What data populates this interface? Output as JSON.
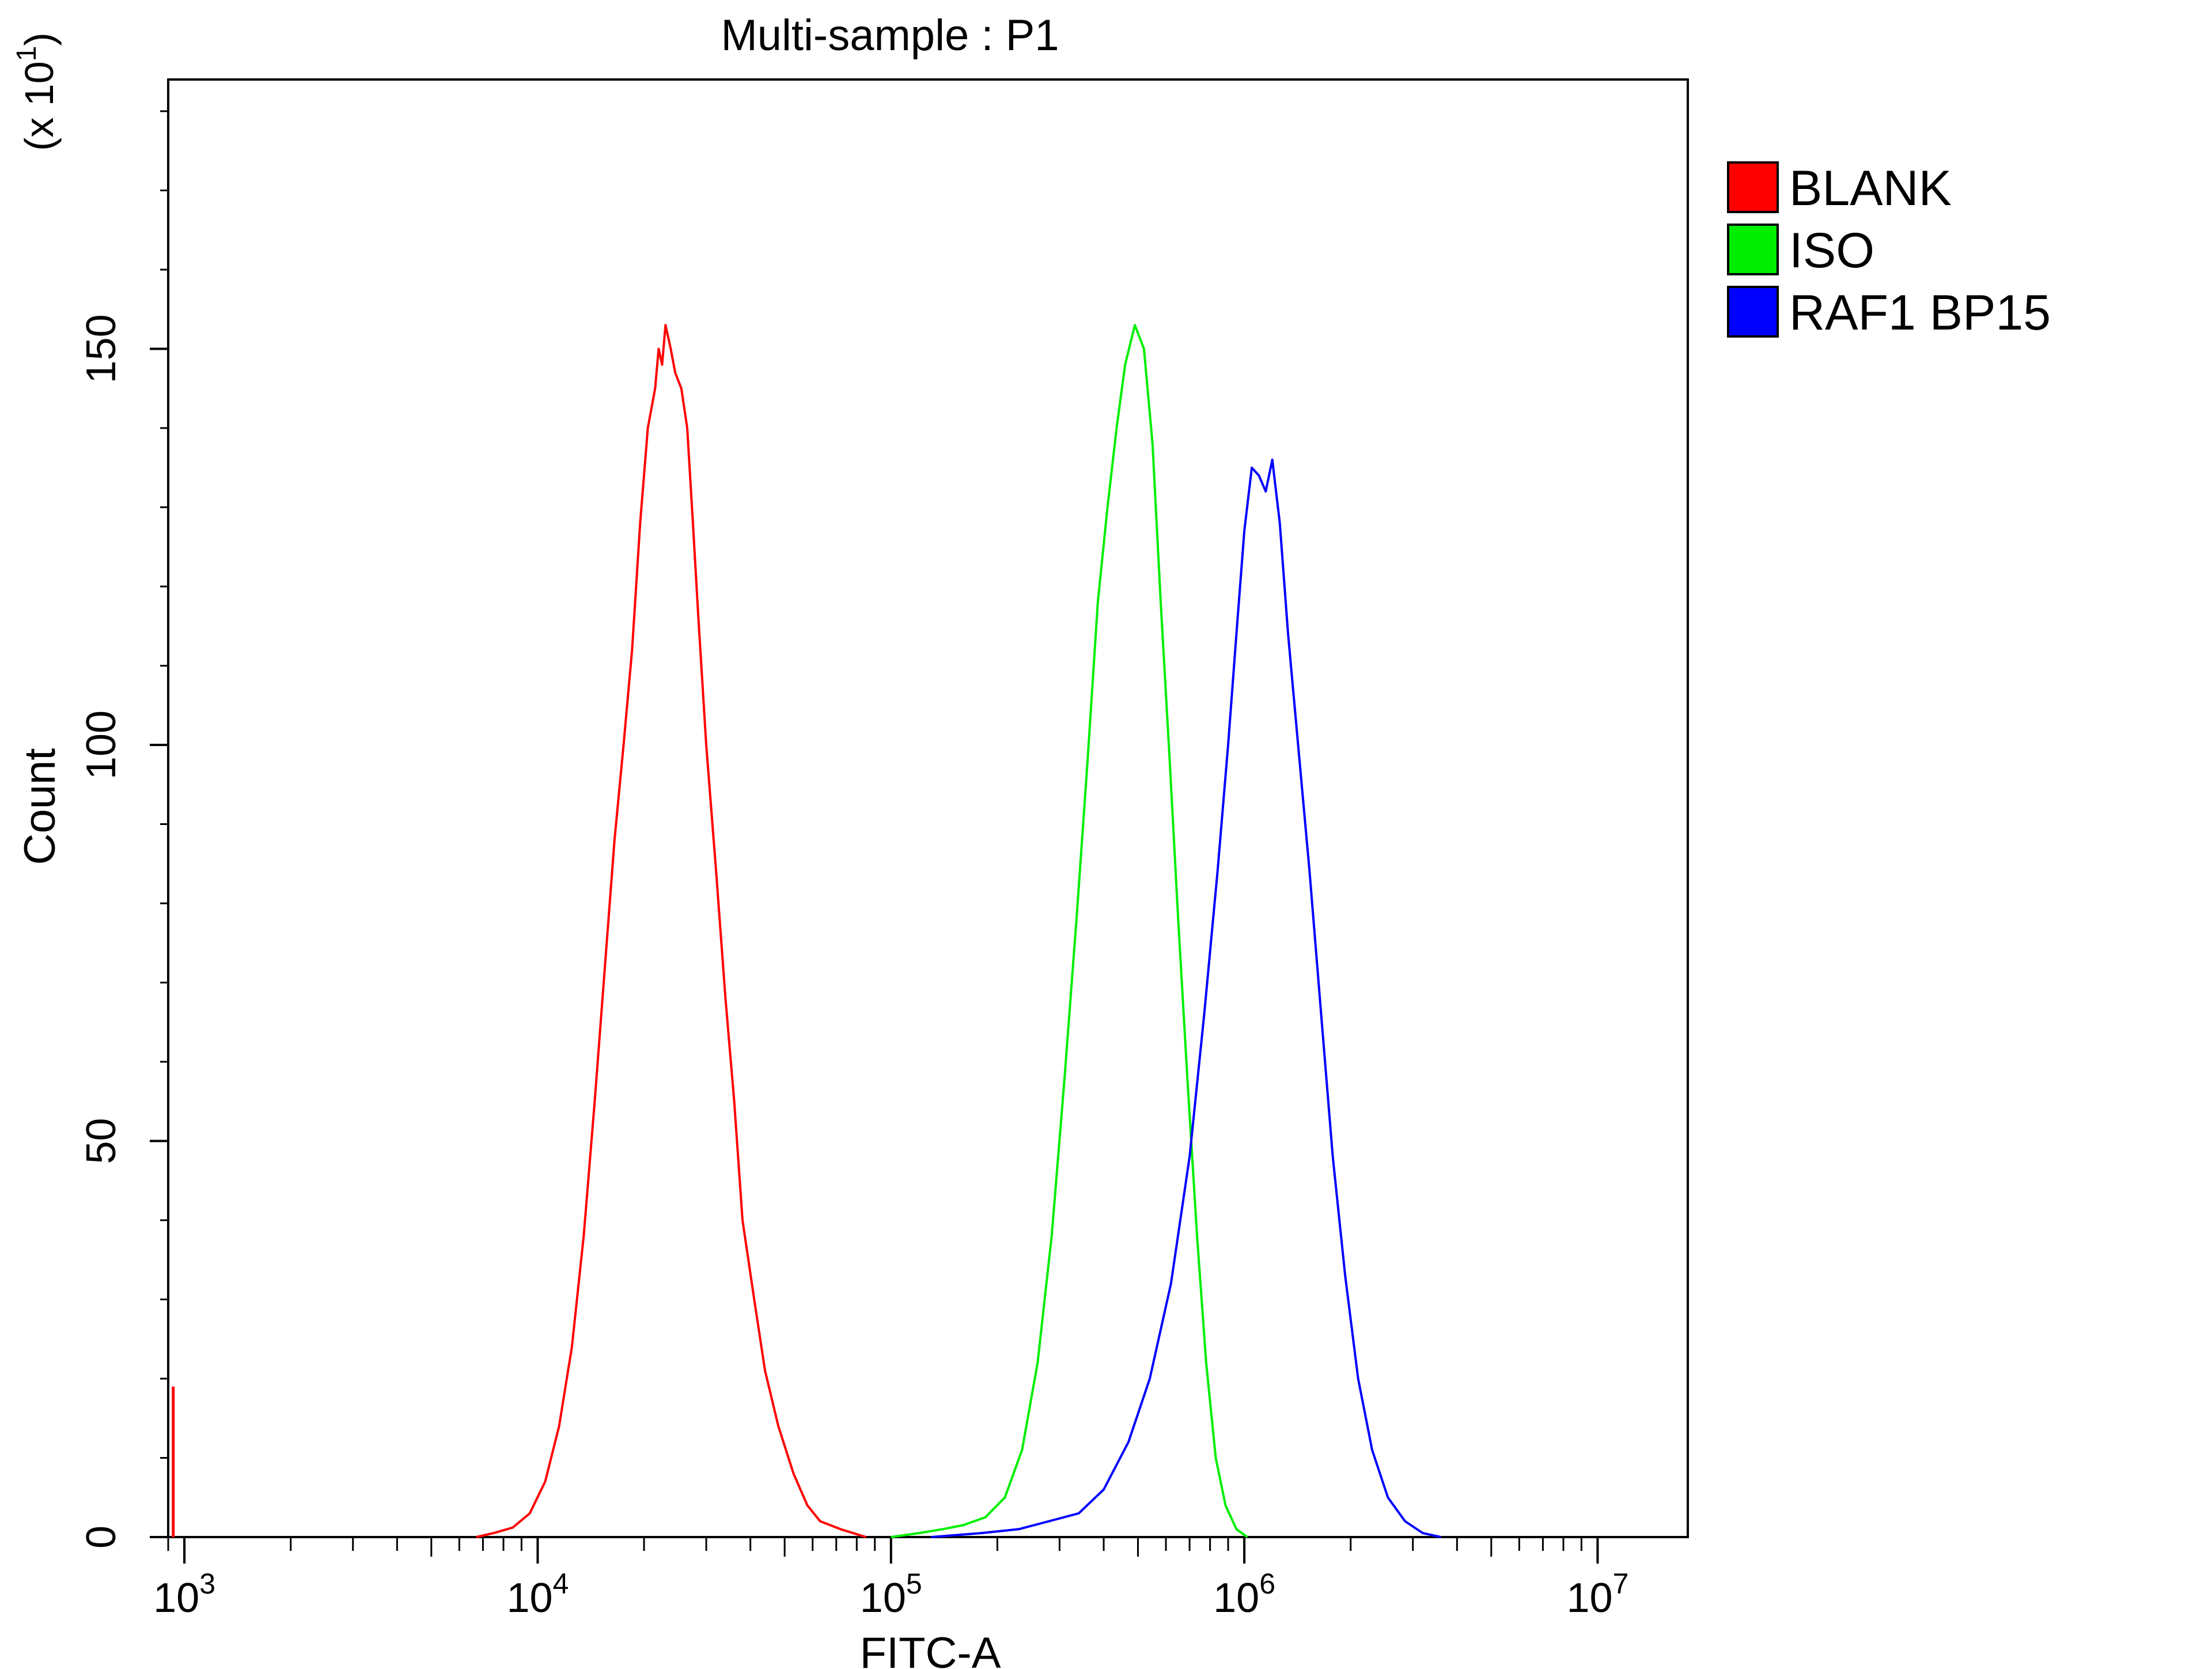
{
  "chart_data": {
    "type": "line",
    "title": "Multi-sample : P1",
    "xlabel": "FITC-A",
    "ylabel": "Count",
    "y_multiplier": "(x 10",
    "y_multiplier_exp": "1",
    "y_multiplier_close": ")",
    "x_scale": "log",
    "xlim": [
      900,
      18000000
    ],
    "ylim": [
      0,
      184
    ],
    "x_ticks": [
      {
        "value": 1000,
        "base": "10",
        "exp": "3"
      },
      {
        "value": 10000,
        "base": "10",
        "exp": "4"
      },
      {
        "value": 100000,
        "base": "10",
        "exp": "5"
      },
      {
        "value": 1000000,
        "base": "10",
        "exp": "6"
      },
      {
        "value": 10000000,
        "base": "10",
        "exp": "7"
      }
    ],
    "y_ticks": [
      {
        "value": 0,
        "label": "0"
      },
      {
        "value": 50,
        "label": "50"
      },
      {
        "value": 100,
        "label": "100"
      },
      {
        "value": 150,
        "label": "150"
      }
    ],
    "grid": false,
    "legend_position": "right",
    "series": [
      {
        "name": "BLANK",
        "color": "#ff0000",
        "points": [
          [
            6700,
            0
          ],
          [
            7500,
            0.5
          ],
          [
            8500,
            1.2
          ],
          [
            9500,
            3
          ],
          [
            10500,
            7
          ],
          [
            11500,
            14
          ],
          [
            12500,
            24
          ],
          [
            13500,
            38
          ],
          [
            14500,
            55
          ],
          [
            15500,
            72
          ],
          [
            16500,
            88
          ],
          [
            17500,
            100
          ],
          [
            18500,
            112
          ],
          [
            19500,
            128
          ],
          [
            20500,
            140
          ],
          [
            21500,
            145
          ],
          [
            22000,
            150
          ],
          [
            22500,
            148
          ],
          [
            23000,
            153
          ],
          [
            23800,
            150
          ],
          [
            24500,
            147
          ],
          [
            25500,
            145
          ],
          [
            26500,
            140
          ],
          [
            27500,
            128
          ],
          [
            28500,
            116
          ],
          [
            30000,
            100
          ],
          [
            32000,
            84
          ],
          [
            34000,
            68
          ],
          [
            36000,
            55
          ],
          [
            38000,
            40
          ],
          [
            41000,
            30
          ],
          [
            44000,
            21
          ],
          [
            48000,
            14
          ],
          [
            53000,
            8
          ],
          [
            58000,
            4
          ],
          [
            63000,
            2
          ],
          [
            72000,
            1
          ],
          [
            85000,
            0
          ]
        ]
      },
      {
        "name": "ISO",
        "color": "#00ee00",
        "points": [
          [
            100000,
            0
          ],
          [
            120000,
            0.5
          ],
          [
            140000,
            1
          ],
          [
            160000,
            1.5
          ],
          [
            185000,
            2.5
          ],
          [
            210000,
            5
          ],
          [
            235000,
            11
          ],
          [
            260000,
            22
          ],
          [
            285000,
            38
          ],
          [
            310000,
            58
          ],
          [
            335000,
            78
          ],
          [
            360000,
            98
          ],
          [
            385000,
            118
          ],
          [
            410000,
            130
          ],
          [
            435000,
            140
          ],
          [
            460000,
            148
          ],
          [
            490000,
            153
          ],
          [
            520000,
            150
          ],
          [
            550000,
            138
          ],
          [
            580000,
            118
          ],
          [
            615000,
            98
          ],
          [
            650000,
            78
          ],
          [
            690000,
            58
          ],
          [
            735000,
            38
          ],
          [
            780000,
            22
          ],
          [
            830000,
            10
          ],
          [
            885000,
            4
          ],
          [
            950000,
            1
          ],
          [
            1020000,
            0
          ]
        ]
      },
      {
        "name": "RAF1 BP15",
        "color": "#0000ff",
        "points": [
          [
            130000,
            0
          ],
          [
            180000,
            0.5
          ],
          [
            230000,
            1
          ],
          [
            280000,
            2
          ],
          [
            340000,
            3
          ],
          [
            400000,
            6
          ],
          [
            470000,
            12
          ],
          [
            540000,
            20
          ],
          [
            620000,
            32
          ],
          [
            700000,
            48
          ],
          [
            770000,
            66
          ],
          [
            840000,
            84
          ],
          [
            900000,
            100
          ],
          [
            950000,
            114
          ],
          [
            1000000,
            127
          ],
          [
            1050000,
            135
          ],
          [
            1100000,
            134
          ],
          [
            1150000,
            132
          ],
          [
            1200000,
            136
          ],
          [
            1260000,
            128
          ],
          [
            1330000,
            114
          ],
          [
            1420000,
            100
          ],
          [
            1530000,
            84
          ],
          [
            1650000,
            66
          ],
          [
            1780000,
            48
          ],
          [
            1930000,
            33
          ],
          [
            2100000,
            20
          ],
          [
            2300000,
            11
          ],
          [
            2550000,
            5
          ],
          [
            2850000,
            2
          ],
          [
            3200000,
            0.5
          ],
          [
            3600000,
            0
          ]
        ]
      }
    ],
    "annotations": [
      {
        "text": "left-edge spike",
        "x": 930,
        "y": 19,
        "color": "#ff0000"
      }
    ]
  }
}
